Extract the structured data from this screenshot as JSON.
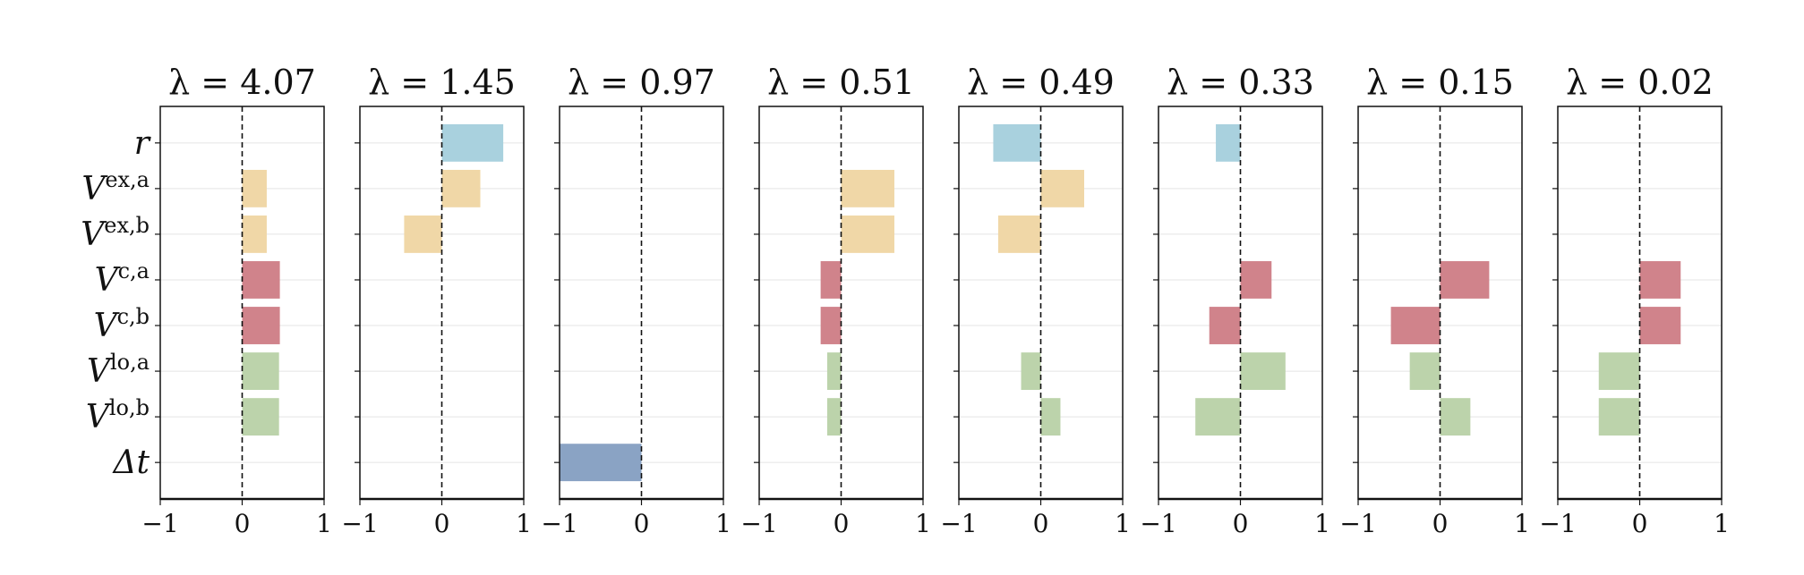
{
  "chart_data": {
    "type": "bar",
    "orientation": "horizontal",
    "categories_latex": [
      "r",
      "V^{ex,a}",
      "V^{ex,b}",
      "V^{c,a}",
      "V^{c,b}",
      "V^{lo,a}",
      "V^{lo,b}",
      "Δt"
    ],
    "categories": [
      {
        "base": "r",
        "sup": ""
      },
      {
        "base": "V",
        "sup": "ex,a"
      },
      {
        "base": "V",
        "sup": "ex,b"
      },
      {
        "base": "V",
        "sup": "c,a"
      },
      {
        "base": "V",
        "sup": "c,b"
      },
      {
        "base": "V",
        "sup": "lo,a"
      },
      {
        "base": "V",
        "sup": "lo,b"
      },
      {
        "base": "Δt",
        "sup": ""
      }
    ],
    "category_colors": [
      "#a9d1de",
      "#f0d7a7",
      "#f0d7a7",
      "#d0838b",
      "#d0838b",
      "#bcd3ab",
      "#bcd3ab",
      "#8aa3c4"
    ],
    "xlim": [
      -1,
      1
    ],
    "xticks": [
      "−1",
      "0",
      "1"
    ],
    "xtick_values": [
      -1,
      0,
      1
    ],
    "grid": "horizontal",
    "zero_line": "dashed",
    "panels": [
      {
        "title": "λ = 4.07",
        "values": [
          0,
          0.3,
          0.3,
          0.46,
          0.46,
          0.45,
          0.45,
          0
        ]
      },
      {
        "title": "λ = 1.45",
        "values": [
          0.75,
          0.47,
          -0.46,
          0,
          0,
          0,
          0,
          0
        ]
      },
      {
        "title": "λ = 0.97",
        "values": [
          0,
          0,
          0,
          0,
          0,
          0,
          0,
          -1.0
        ]
      },
      {
        "title": "λ = 0.51",
        "values": [
          0,
          0.65,
          0.65,
          -0.25,
          -0.25,
          -0.17,
          -0.17,
          0
        ]
      },
      {
        "title": "λ = 0.49",
        "values": [
          -0.58,
          0.53,
          -0.52,
          0,
          0,
          -0.24,
          0.24,
          0
        ]
      },
      {
        "title": "λ = 0.33",
        "values": [
          -0.3,
          0,
          0,
          0.38,
          -0.38,
          0.55,
          -0.55,
          0
        ]
      },
      {
        "title": "λ = 0.15",
        "values": [
          0,
          0,
          0,
          0.6,
          -0.6,
          -0.37,
          0.37,
          0
        ]
      },
      {
        "title": "λ = 0.02",
        "values": [
          0,
          0,
          0,
          0.5,
          0.5,
          -0.5,
          -0.5,
          0
        ]
      }
    ]
  }
}
